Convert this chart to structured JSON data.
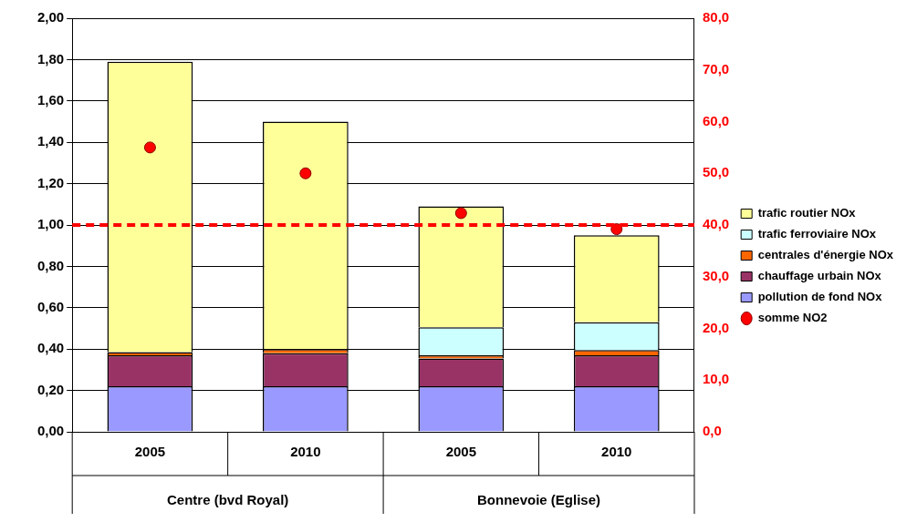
{
  "chart_data": {
    "type": "bar",
    "stacked": true,
    "categories": [
      "2005",
      "2010",
      "2005",
      "2010"
    ],
    "series": [
      {
        "name": "pollution de fond NOx",
        "color": "#9999ff",
        "values": [
          0.22,
          0.22,
          0.22,
          0.22
        ]
      },
      {
        "name": "chauffage urbain NOx",
        "color": "#993366",
        "values": [
          0.15,
          0.16,
          0.135,
          0.15
        ]
      },
      {
        "name": "centrales d'énergie NOx",
        "color": "#ff6600",
        "values": [
          0.015,
          0.02,
          0.015,
          0.025
        ]
      },
      {
        "name": "trafic ferroviaire NOx",
        "color": "#ccffff",
        "values": [
          null,
          null,
          0.135,
          0.135
        ]
      },
      {
        "name": "trafic routier NOx",
        "color": "#ffff99",
        "values": [
          1.405,
          1.1,
          0.585,
          0.42
        ]
      },
      {
        "name": "somme NO2",
        "type": "scatter",
        "axis": "y2",
        "color": "#ff0000",
        "marker": "circle",
        "values": [
          55,
          50,
          42.3,
          39.2
        ]
      }
    ],
    "ylim": [
      0,
      2
    ],
    "yticks": [
      {
        "value": 0,
        "label": "0,00"
      },
      {
        "value": 0.2,
        "label": "0,20"
      },
      {
        "value": 0.4,
        "label": "0,40"
      },
      {
        "value": 0.6,
        "label": "0,60"
      },
      {
        "value": 0.8,
        "label": "0,80"
      },
      {
        "value": 1,
        "label": "1,00"
      },
      {
        "value": 1.2,
        "label": "1,20"
      },
      {
        "value": 1.4,
        "label": "1,40"
      },
      {
        "value": 1.6,
        "label": "1,60"
      },
      {
        "value": 1.8,
        "label": "1,80"
      },
      {
        "value": 2,
        "label": "2,00"
      }
    ],
    "y2lim": [
      0,
      80
    ],
    "y2ticks": [
      {
        "value": 0,
        "label": "0,0"
      },
      {
        "value": 10,
        "label": "10,0"
      },
      {
        "value": 20,
        "label": "20,0"
      },
      {
        "value": 30,
        "label": "30,0"
      },
      {
        "value": 40,
        "label": "40,0"
      },
      {
        "value": 50,
        "label": "50,0"
      },
      {
        "value": 60,
        "label": "60,0"
      },
      {
        "value": 70,
        "label": "70,0"
      },
      {
        "value": 80,
        "label": "80,0"
      }
    ],
    "ref_lines": [
      {
        "axis": "y2",
        "value": 40,
        "color": "#ff0000",
        "line_style": "dashed"
      }
    ],
    "annotations": [
      "Centre (bvd Royal)",
      "Bonnevoie (Eglise)"
    ],
    "grid": "y",
    "legend": "right"
  }
}
